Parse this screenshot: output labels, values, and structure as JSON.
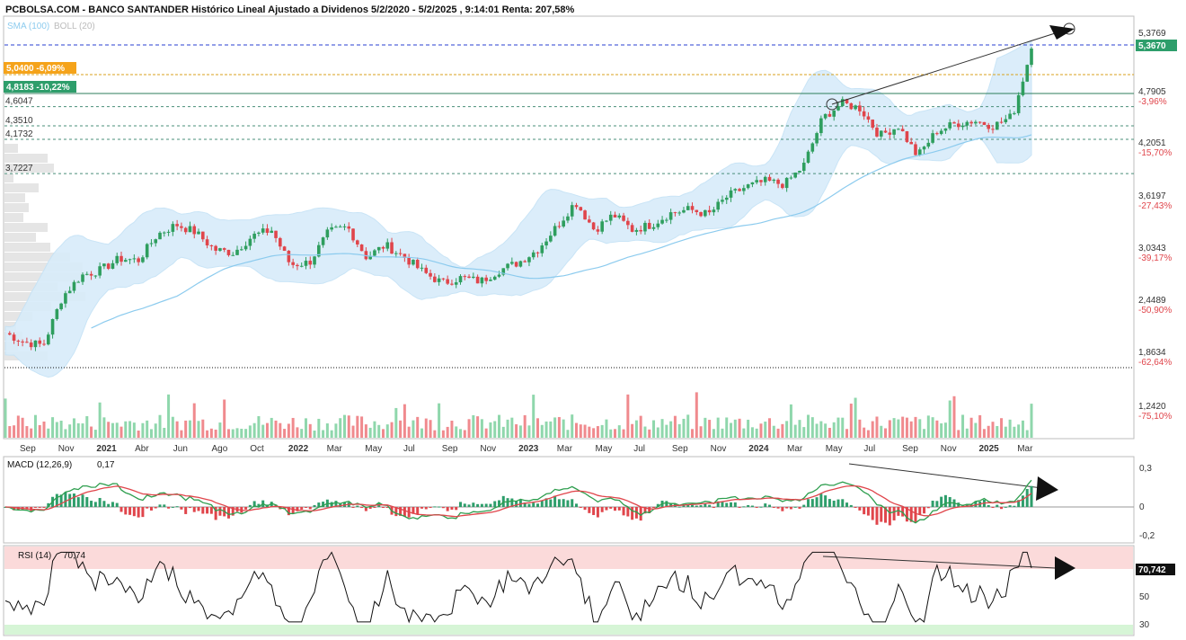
{
  "header": {
    "title": "PCBOLSA.COM - BANCO SANTANDER Histórico Lineal Ajustado a Dividenos 5/2/2020 - 5/2/2025 , 9:14:01 Renta: 207,58%",
    "overlay_sma": "SMA (100)",
    "overlay_boll": "BOLL (20)"
  },
  "tags": {
    "orange": "5,0400 -6,09%",
    "green": "4,8183 -10,22%"
  },
  "levels_left": [
    {
      "label": "4,6047",
      "value": 4.6047
    },
    {
      "label": "4,3510",
      "value": 4.351
    },
    {
      "label": "4,1732",
      "value": 4.1732
    },
    {
      "label": "3,7227",
      "value": 3.7227
    }
  ],
  "price_axis": [
    {
      "label": "5,3769",
      "pct": ""
    },
    {
      "label": "4,7905",
      "pct": "-3,96%"
    },
    {
      "label": "4,2051",
      "pct": "-15,70%"
    },
    {
      "label": "3,6197",
      "pct": "-27,43%"
    },
    {
      "label": "3,0343",
      "pct": "-39,17%"
    },
    {
      "label": "2,4489",
      "pct": "-50,90%"
    },
    {
      "label": "1,8634",
      "pct": "-62,64%"
    },
    {
      "label": "1,2420",
      "pct": "-75,10%"
    }
  ],
  "last_price": "5,3670",
  "x_labels": [
    {
      "label": "Sep",
      "bold": false
    },
    {
      "label": "Nov",
      "bold": false
    },
    {
      "label": "2021",
      "bold": true
    },
    {
      "label": "Abr",
      "bold": false
    },
    {
      "label": "Jun",
      "bold": false
    },
    {
      "label": "Ago",
      "bold": false
    },
    {
      "label": "Oct",
      "bold": false
    },
    {
      "label": "2022",
      "bold": true
    },
    {
      "label": "Mar",
      "bold": false
    },
    {
      "label": "May",
      "bold": false
    },
    {
      "label": "Jul",
      "bold": false
    },
    {
      "label": "Sep",
      "bold": false
    },
    {
      "label": "Nov",
      "bold": false
    },
    {
      "label": "2023",
      "bold": true
    },
    {
      "label": "Mar",
      "bold": false
    },
    {
      "label": "May",
      "bold": false
    },
    {
      "label": "Jul",
      "bold": false
    },
    {
      "label": "Sep",
      "bold": false
    },
    {
      "label": "Nov",
      "bold": false
    },
    {
      "label": "2024",
      "bold": true
    },
    {
      "label": "Mar",
      "bold": false
    },
    {
      "label": "May",
      "bold": false
    },
    {
      "label": "Jul",
      "bold": false
    },
    {
      "label": "Sep",
      "bold": false
    },
    {
      "label": "Nov",
      "bold": false
    },
    {
      "label": "2025",
      "bold": true
    },
    {
      "label": "Mar",
      "bold": false
    }
  ],
  "macd": {
    "label": "MACD (12,26,9)",
    "value": "0,17",
    "axis": [
      "0,3",
      "0",
      "-0,2"
    ]
  },
  "rsi": {
    "label": "RSI (14)",
    "value": "70,74",
    "last": "70,742",
    "axis": [
      "50",
      "30"
    ]
  },
  "colors": {
    "up": "#2e9e5e",
    "down": "#e0454b",
    "boll_fill": "#d8ecfa",
    "sma": "#8ccbee",
    "orange_tag": "#f5a31a",
    "green_tag": "#2e9e6b"
  },
  "chart_data": {
    "type": "line",
    "title": "PCBOLSA.COM - BANCO SANTANDER Histórico Lineal Ajustado a Dividenos 5/2/2020 - 5/2/2025",
    "ylim": [
      1.2,
      5.45
    ],
    "series": [
      {
        "name": "",
        "x": [
          "2020-08",
          "2020-09",
          "2020-10",
          "2020-11",
          "2020-12",
          "2021-01",
          "2021-02",
          "2021-03",
          "2021-04",
          "2021-05",
          "2021-06",
          "2021-07",
          "2021-08",
          "2021-09",
          "2021-10",
          "2021-11",
          "2021-12",
          "2022-01",
          "2022-02",
          "2022-03",
          "2022-04",
          "2022-05",
          "2022-06",
          "2022-07",
          "2022-08",
          "2022-09",
          "2022-10",
          "2022-11",
          "2022-12",
          "2023-01",
          "2023-02",
          "2023-03",
          "2023-04",
          "2023-05",
          "2023-06",
          "2023-07",
          "2023-08",
          "2023-09",
          "2023-10",
          "2023-11",
          "2023-12",
          "2024-01",
          "2024-02",
          "2024-03",
          "2024-04",
          "2024-05",
          "2024-06",
          "2024-07",
          "2024-08",
          "2024-09",
          "2024-10",
          "2024-11",
          "2024-12",
          "2025-01",
          "2025-02"
        ],
        "values": [
          1.62,
          1.5,
          1.46,
          2.1,
          2.38,
          2.45,
          2.6,
          2.58,
          2.92,
          3.05,
          2.95,
          2.72,
          2.68,
          2.9,
          2.98,
          2.52,
          2.55,
          2.95,
          3.02,
          2.62,
          2.78,
          2.62,
          2.42,
          2.28,
          2.35,
          2.3,
          2.45,
          2.55,
          2.72,
          3.02,
          3.35,
          2.98,
          3.18,
          2.98,
          3.05,
          3.2,
          3.25,
          3.18,
          3.42,
          3.55,
          3.62,
          3.58,
          3.82,
          4.45,
          4.65,
          4.58,
          4.22,
          4.35,
          3.95,
          4.28,
          4.38,
          4.42,
          4.35,
          4.48,
          5.37
        ]
      }
    ],
    "levels": [
      4.6047,
      4.351,
      4.1732,
      3.7227
    ]
  }
}
